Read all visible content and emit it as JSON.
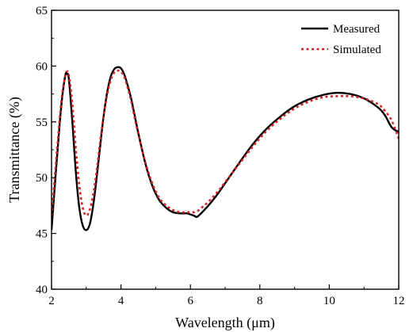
{
  "chart_data": {
    "type": "line",
    "title": "",
    "xlabel": "Wavelength (μm)",
    "ylabel": "Transmittance (%)",
    "xlim": [
      2,
      12
    ],
    "ylim": [
      40,
      65
    ],
    "x_ticks": [
      2,
      4,
      6,
      8,
      10,
      12
    ],
    "y_ticks": [
      40,
      45,
      50,
      55,
      60,
      65
    ],
    "grid": false,
    "legend_position": "top-right",
    "series": [
      {
        "name": "Measured",
        "color": "#000000",
        "style": "solid",
        "x": [
          2.0,
          2.1,
          2.2,
          2.3,
          2.4,
          2.45,
          2.5,
          2.6,
          2.7,
          2.8,
          2.9,
          3.0,
          3.1,
          3.2,
          3.3,
          3.4,
          3.5,
          3.6,
          3.7,
          3.8,
          3.9,
          4.0,
          4.1,
          4.2,
          4.3,
          4.4,
          4.5,
          4.7,
          4.9,
          5.1,
          5.3,
          5.5,
          5.7,
          5.9,
          6.0,
          6.1,
          6.2,
          6.4,
          6.6,
          6.8,
          7.0,
          7.4,
          7.8,
          8.2,
          8.6,
          9.0,
          9.4,
          9.8,
          10.2,
          10.6,
          11.0,
          11.4,
          11.6,
          11.8,
          12.0
        ],
        "y": [
          45.3,
          49.5,
          53.5,
          57.0,
          59.2,
          59.3,
          58.8,
          55.0,
          50.5,
          47.3,
          45.7,
          45.3,
          45.8,
          47.5,
          50.0,
          52.8,
          55.5,
          57.6,
          59.0,
          59.7,
          59.9,
          59.8,
          59.2,
          58.2,
          57.0,
          55.5,
          54.0,
          51.3,
          49.3,
          48.0,
          47.3,
          46.9,
          46.8,
          46.8,
          46.7,
          46.6,
          46.5,
          47.1,
          47.8,
          48.6,
          49.5,
          51.3,
          53.0,
          54.4,
          55.5,
          56.4,
          57.0,
          57.4,
          57.6,
          57.5,
          57.1,
          56.3,
          55.6,
          54.5,
          54.1
        ]
      },
      {
        "name": "Simulated",
        "color": "#d42121",
        "style": "dotted",
        "x": [
          2.0,
          2.1,
          2.2,
          2.3,
          2.4,
          2.45,
          2.5,
          2.6,
          2.7,
          2.8,
          2.9,
          3.0,
          3.1,
          3.2,
          3.3,
          3.4,
          3.5,
          3.6,
          3.7,
          3.8,
          3.9,
          4.0,
          4.1,
          4.2,
          4.3,
          4.4,
          4.5,
          4.7,
          4.9,
          5.1,
          5.3,
          5.5,
          5.7,
          5.9,
          6.0,
          6.1,
          6.2,
          6.4,
          6.6,
          6.8,
          7.0,
          7.4,
          7.8,
          8.2,
          8.6,
          9.0,
          9.4,
          9.8,
          10.2,
          10.6,
          11.0,
          11.4,
          11.6,
          11.8,
          12.0
        ],
        "y": [
          46.6,
          50.3,
          54.0,
          57.3,
          59.2,
          59.5,
          59.2,
          56.6,
          52.6,
          49.3,
          47.3,
          46.6,
          47.1,
          48.5,
          50.6,
          53.2,
          55.5,
          57.4,
          58.7,
          59.4,
          59.6,
          59.5,
          59.0,
          58.0,
          56.8,
          55.3,
          53.9,
          51.4,
          49.5,
          48.2,
          47.5,
          47.1,
          46.9,
          46.9,
          46.9,
          46.9,
          47.0,
          47.5,
          48.1,
          48.8,
          49.6,
          51.2,
          52.8,
          54.2,
          55.3,
          56.2,
          56.8,
          57.2,
          57.3,
          57.3,
          57.1,
          56.6,
          56.0,
          55.1,
          53.5
        ]
      }
    ]
  }
}
